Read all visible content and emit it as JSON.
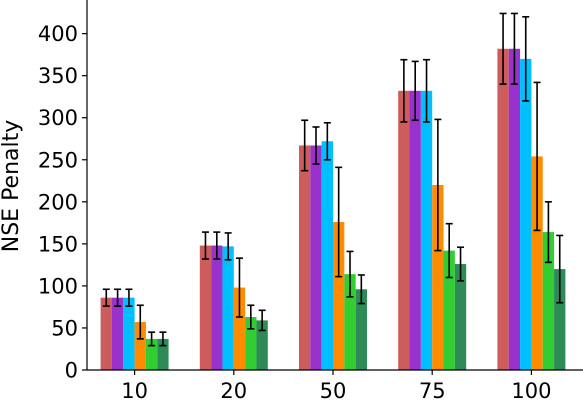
{
  "chart_data": {
    "type": "bar",
    "title": "",
    "xlabel": "",
    "ylabel": "NSE Penalty",
    "ylim": [
      0,
      440
    ],
    "yticks": [
      0,
      50,
      100,
      150,
      200,
      250,
      300,
      350,
      400
    ],
    "categories": [
      "10",
      "20",
      "50",
      "75",
      "100"
    ],
    "legend": "none",
    "grid": false,
    "series": [
      {
        "color": "#cd5c5c",
        "values": [
          86,
          148,
          267,
          332,
          382
        ],
        "errors": [
          10,
          16,
          30,
          37,
          42
        ]
      },
      {
        "color": "#9932cc",
        "values": [
          86,
          148,
          267,
          332,
          382
        ],
        "errors": [
          10,
          16,
          22,
          35,
          42
        ]
      },
      {
        "color": "#00bfff",
        "values": [
          86,
          147,
          272,
          332,
          370
        ],
        "errors": [
          10,
          16,
          22,
          37,
          50
        ]
      },
      {
        "color": "#ff8c00",
        "values": [
          57,
          98,
          176,
          220,
          254
        ],
        "errors": [
          20,
          35,
          65,
          78,
          88
        ]
      },
      {
        "color": "#32cd32",
        "values": [
          37,
          63,
          114,
          142,
          164
        ],
        "errors": [
          8,
          14,
          27,
          32,
          36
        ]
      },
      {
        "color": "#2e8b57",
        "values": [
          37,
          59,
          96,
          126,
          120
        ],
        "errors": [
          8,
          12,
          17,
          20,
          40
        ]
      }
    ]
  }
}
